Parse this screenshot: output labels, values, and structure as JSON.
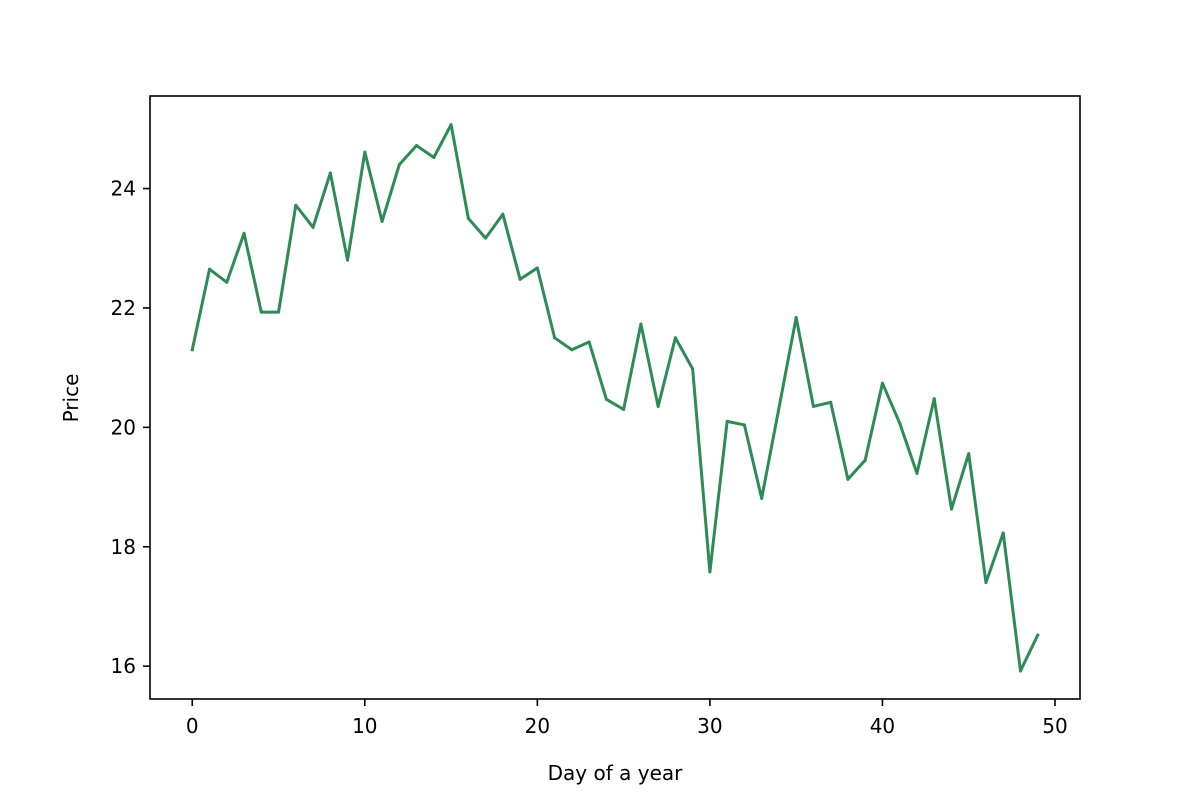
{
  "chart_data": {
    "type": "line",
    "title": "",
    "xlabel": "Day of a year",
    "ylabel": "Price",
    "xlim": [
      -2.45,
      51.45
    ],
    "ylim": [
      15.45,
      25.55
    ],
    "xticks": [
      0,
      10,
      20,
      30,
      40,
      50
    ],
    "yticks": [
      16,
      18,
      20,
      22,
      24
    ],
    "xtick_labels": [
      "0",
      "10",
      "20",
      "30",
      "40",
      "50"
    ],
    "ytick_labels": [
      "16",
      "18",
      "20",
      "22",
      "24"
    ],
    "grid": false,
    "legend": "none",
    "series": [
      {
        "color": "#2e8b57",
        "x": [
          0,
          1,
          2,
          3,
          4,
          5,
          6,
          7,
          8,
          9,
          10,
          11,
          12,
          13,
          14,
          15,
          16,
          17,
          18,
          19,
          20,
          21,
          22,
          23,
          24,
          25,
          26,
          27,
          28,
          29,
          30,
          31,
          32,
          33,
          34,
          35,
          36,
          37,
          38,
          39,
          40,
          41,
          42,
          43,
          44,
          45,
          46,
          47,
          48,
          49
        ],
        "y": [
          21.3,
          22.65,
          22.43,
          23.25,
          21.93,
          21.93,
          23.72,
          23.35,
          24.26,
          22.8,
          24.61,
          23.45,
          24.4,
          24.72,
          24.52,
          25.07,
          23.5,
          23.17,
          23.57,
          22.48,
          22.67,
          21.5,
          21.3,
          21.43,
          20.47,
          20.3,
          21.73,
          20.35,
          21.5,
          20.98,
          17.58,
          20.1,
          20.04,
          18.81,
          20.32,
          21.84,
          20.35,
          20.42,
          19.13,
          19.45,
          20.74,
          20.07,
          19.23,
          20.48,
          18.63,
          19.56,
          17.4,
          18.23,
          15.92,
          16.52
        ]
      }
    ]
  }
}
